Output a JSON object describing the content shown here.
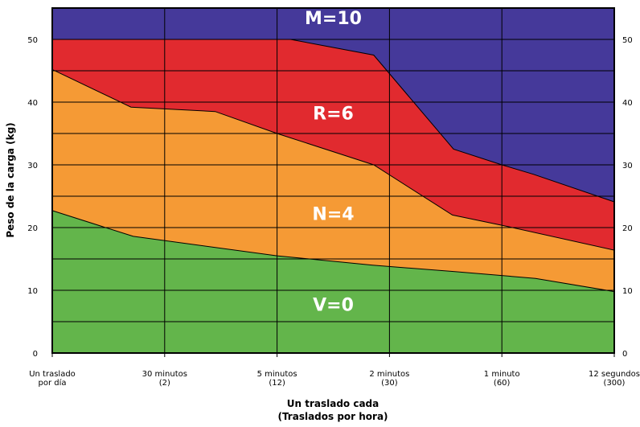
{
  "chart_data": {
    "type": "area",
    "title": "",
    "ylabel": "Peso de la carga (kg)",
    "xlabel": [
      "Un traslado cada",
      "(Traslados por hora)"
    ],
    "ylim": [
      0,
      55
    ],
    "yticks": [
      0,
      10,
      20,
      30,
      40,
      50
    ],
    "xlim": [
      0,
      5
    ],
    "xticks": [
      {
        "x": 0,
        "lines": [
          "Un traslado",
          "por día"
        ]
      },
      {
        "x": 1,
        "lines": [
          "30 minutos",
          "(2)"
        ]
      },
      {
        "x": 2,
        "lines": [
          "5 minutos",
          "(12)"
        ]
      },
      {
        "x": 3,
        "lines": [
          "2 minutos",
          "(30)"
        ]
      },
      {
        "x": 4,
        "lines": [
          "1 minuto",
          "(60)"
        ]
      },
      {
        "x": 5,
        "lines": [
          "12 segundos",
          "(300)"
        ]
      }
    ],
    "grid": {
      "horizontal": true,
      "vertical": true,
      "yminor_step": 5
    },
    "boundaries": [
      {
        "name": "V/N",
        "x": [
          0,
          0.72,
          2.0,
          2.85,
          3.57,
          4.3,
          5.0
        ],
        "y": [
          22.7,
          18.6,
          15.5,
          14.0,
          13.0,
          11.9,
          9.8
        ]
      },
      {
        "name": "N/R",
        "x": [
          0,
          0.7,
          1.45,
          2.0,
          2.86,
          3.56,
          4.02,
          5.0
        ],
        "y": [
          45.2,
          39.2,
          38.5,
          35.0,
          30.0,
          22.0,
          20.3,
          16.4
        ]
      },
      {
        "name": "R/M",
        "x": [
          0,
          1.0,
          2.0,
          2.12,
          2.86,
          3.57,
          4.0,
          4.28,
          5.0
        ],
        "y": [
          50.0,
          50.0,
          50.0,
          50.0,
          47.5,
          32.5,
          30.0,
          28.5,
          24.1
        ]
      }
    ],
    "zones": [
      {
        "label": "V=0",
        "color": "#63b54b",
        "label_x": 2.5,
        "label_y": 7.5
      },
      {
        "label": "N=4",
        "color": "#f59a35",
        "label_x": 2.5,
        "label_y": 22.0
      },
      {
        "label": "R=6",
        "color": "#e12a2f",
        "label_x": 2.5,
        "label_y": 38.0
      },
      {
        "label": "M=10",
        "color": "#45399a",
        "label_x": 2.5,
        "label_y": 53.2
      }
    ]
  }
}
